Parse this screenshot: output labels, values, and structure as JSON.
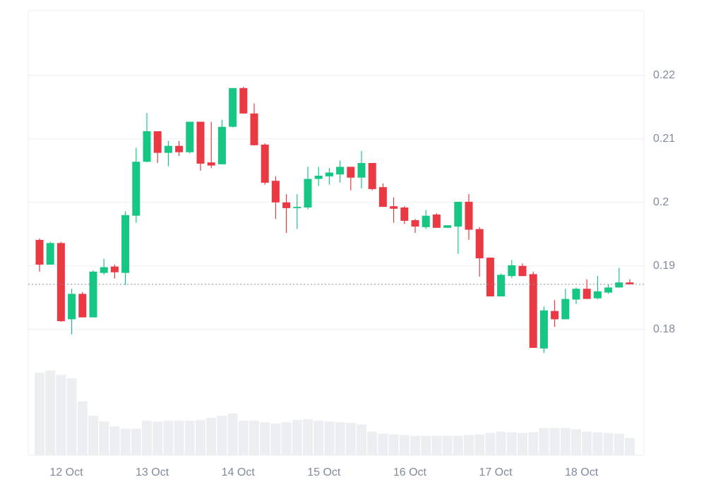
{
  "chart_data": {
    "type": "candlestick",
    "categories": [
      null,
      null,
      null,
      "12 Oct",
      null,
      null,
      null,
      null,
      null,
      null,
      null,
      "13 Oct",
      null,
      null,
      null,
      null,
      null,
      null,
      null,
      "14 Oct",
      null,
      null,
      null,
      null,
      null,
      null,
      null,
      "15 Oct",
      null,
      null,
      null,
      null,
      null,
      null,
      null,
      "16 Oct",
      null,
      null,
      null,
      null,
      null,
      null,
      null,
      "17 Oct",
      null,
      null,
      null,
      null,
      null,
      null,
      null,
      "18 Oct",
      null,
      null,
      null,
      null
    ],
    "open": [
      0.1941,
      0.1902,
      0.1936,
      0.1816,
      0.1856,
      0.1819,
      0.1889,
      0.1899,
      0.1889,
      0.1979,
      0.2064,
      0.2112,
      0.2078,
      0.2089,
      0.2079,
      0.2127,
      0.2063,
      0.206,
      0.2119,
      0.218,
      0.214,
      0.2091,
      0.2034,
      0.2,
      0.1991,
      0.1992,
      0.2037,
      0.2041,
      0.2044,
      0.2056,
      0.2039,
      0.2062,
      0.2024,
      0.1994,
      0.1992,
      0.1972,
      0.1961,
      0.1981,
      0.196,
      0.1962,
      0.2001,
      0.1958,
      0.1913,
      0.1852,
      0.1884,
      0.19,
      0.1887,
      0.177,
      0.1829,
      0.1816,
      0.1847,
      0.1864,
      0.1849,
      0.1858,
      0.1866,
      0.1874
    ],
    "high": [
      0.1943,
      0.1938,
      0.1938,
      0.1864,
      0.1859,
      0.1893,
      0.1911,
      0.1902,
      0.1986,
      0.2086,
      0.2141,
      0.2112,
      0.2097,
      0.2097,
      0.2127,
      0.2127,
      0.2127,
      0.213,
      0.218,
      0.2182,
      0.2156,
      0.2093,
      0.2041,
      0.2013,
      0.2013,
      0.2056,
      0.2056,
      0.2054,
      0.2066,
      0.2056,
      0.2081,
      0.2062,
      0.203,
      0.2008,
      0.1994,
      0.1974,
      0.1988,
      0.1983,
      0.1964,
      0.2001,
      0.2013,
      0.1961,
      0.1913,
      0.1888,
      0.1909,
      0.1904,
      0.1891,
      0.1836,
      0.1846,
      0.1864,
      0.1866,
      0.1879,
      0.1884,
      0.1871,
      0.1897,
      0.1879
    ],
    "low": [
      0.1891,
      0.1902,
      0.1812,
      0.1792,
      0.1819,
      0.1819,
      0.1886,
      0.188,
      0.187,
      0.1968,
      0.2063,
      0.2062,
      0.2057,
      0.2073,
      0.2077,
      0.205,
      0.2054,
      0.206,
      0.2118,
      0.214,
      0.209,
      0.2028,
      0.1974,
      0.1952,
      0.1958,
      0.1989,
      0.2026,
      0.2028,
      0.2031,
      0.2019,
      0.2022,
      0.2019,
      0.1993,
      0.1968,
      0.1966,
      0.1952,
      0.1958,
      0.196,
      0.196,
      0.1919,
      0.1941,
      0.1883,
      0.1852,
      0.1852,
      0.1881,
      0.1884,
      0.1771,
      0.1763,
      0.1804,
      0.1816,
      0.184,
      0.1848,
      0.1847,
      0.1856,
      0.1866,
      0.1871
    ],
    "close": [
      0.1902,
      0.1936,
      0.1813,
      0.1856,
      0.1819,
      0.1891,
      0.1898,
      0.189,
      0.198,
      0.2064,
      0.2112,
      0.2078,
      0.2089,
      0.2079,
      0.2127,
      0.2061,
      0.2058,
      0.2119,
      0.218,
      0.214,
      0.209,
      0.2031,
      0.2,
      0.1991,
      0.1993,
      0.2037,
      0.2042,
      0.2047,
      0.2056,
      0.2039,
      0.2062,
      0.2021,
      0.1993,
      0.199,
      0.1971,
      0.1962,
      0.1979,
      0.196,
      0.1964,
      0.2001,
      0.1957,
      0.1912,
      0.1852,
      0.1886,
      0.1901,
      0.1884,
      0.1771,
      0.183,
      0.1816,
      0.1848,
      0.1864,
      0.1848,
      0.186,
      0.1866,
      0.1874,
      0.1871
    ],
    "volume": [
      115,
      118,
      112,
      107,
      75,
      55,
      47,
      40,
      37,
      37,
      48,
      47,
      48,
      48,
      48,
      49,
      52,
      55,
      58,
      48,
      48,
      46,
      44,
      46,
      49,
      50,
      48,
      47,
      46,
      45,
      43,
      33,
      30,
      29,
      28,
      27,
      27,
      27,
      27,
      27,
      28,
      29,
      31,
      33,
      32,
      31,
      32,
      38,
      38,
      38,
      36,
      33,
      32,
      31,
      30,
      24
    ],
    "ylim": [
      0.1602,
      0.2302
    ],
    "yticks": [
      0.18,
      0.19,
      0.2,
      0.21,
      0.22
    ],
    "grid": true,
    "colors": {
      "up": "#16c784",
      "down": "#ea3943",
      "volume": "#eceef2"
    }
  }
}
